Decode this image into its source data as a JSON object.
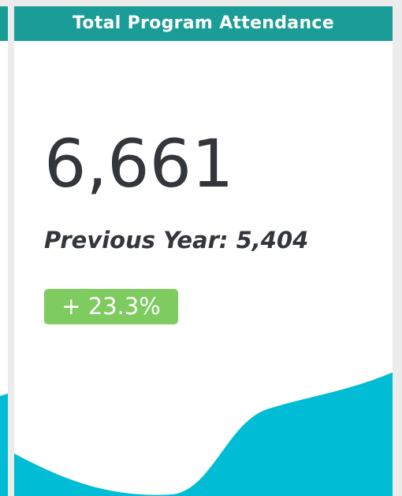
{
  "header": {
    "title": "Total Program Attendance"
  },
  "kpi": {
    "value": "6,661",
    "previous_label": "Previous Year: 5,404",
    "change": "+ 23.3%"
  }
}
